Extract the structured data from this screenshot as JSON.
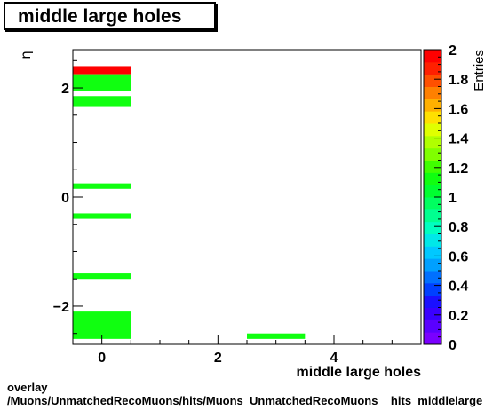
{
  "chart_data": {
    "type": "heatmap",
    "title": "middle large holes",
    "xlabel": "middle large holes",
    "ylabel": "η",
    "zlabel": "Entries",
    "xlim": [
      -0.5,
      5.5
    ],
    "ylim": [
      -2.7,
      2.7
    ],
    "zlim": [
      0,
      2
    ],
    "x_ticks": [
      0,
      2,
      4
    ],
    "y_ticks": [
      -2,
      0,
      2
    ],
    "z_ticks": [
      0,
      0.2,
      0.4,
      0.6,
      0.8,
      1,
      1.2,
      1.4,
      1.6,
      1.8,
      2
    ],
    "tick_labels": {
      "x": [
        "0",
        "2",
        "4"
      ],
      "y": [
        "−2",
        "0",
        "2"
      ],
      "z": [
        "0",
        "0.2",
        "0.4",
        "0.6",
        "0.8",
        "1",
        "1.2",
        "1.4",
        "1.6",
        "1.8",
        "2"
      ]
    },
    "cells": [
      {
        "x0": -0.5,
        "x1": 0.5,
        "y0": 2.25,
        "y1": 2.4,
        "value": 2
      },
      {
        "x0": -0.5,
        "x1": 0.5,
        "y0": 1.95,
        "y1": 2.25,
        "value": 1
      },
      {
        "x0": -0.5,
        "x1": 0.5,
        "y0": 1.65,
        "y1": 1.85,
        "value": 1
      },
      {
        "x0": -0.5,
        "x1": 0.5,
        "y0": 0.15,
        "y1": 0.25,
        "value": 1
      },
      {
        "x0": -0.5,
        "x1": 0.5,
        "y0": -0.4,
        "y1": -0.3,
        "value": 1
      },
      {
        "x0": -0.5,
        "x1": 0.5,
        "y0": -1.5,
        "y1": -1.4,
        "value": 1
      },
      {
        "x0": -0.5,
        "x1": 0.5,
        "y0": -2.6,
        "y1": -2.1,
        "value": 1
      },
      {
        "x0": 2.5,
        "x1": 3.5,
        "y0": -2.6,
        "y1": -2.5,
        "value": 1
      }
    ],
    "palette": [
      "#7a00ff",
      "#5a00ff",
      "#3a00ff",
      "#1a10ff",
      "#0040ff",
      "#0070ff",
      "#00a0ff",
      "#00c8ff",
      "#00e8e8",
      "#00ffc0",
      "#00ff90",
      "#00ff60",
      "#00ff30",
      "#10ff10",
      "#40ff00",
      "#80ff00",
      "#b0ff00",
      "#e0ff00",
      "#ffe000",
      "#ffb000",
      "#ff8000",
      "#ff5000",
      "#ff2000",
      "#ff0000"
    ]
  },
  "footer": {
    "line1": "overlay",
    "line2": "/Muons/UnmatchedRecoMuons/hits/Muons_UnmatchedRecoMuons__hits_middlelarge"
  }
}
